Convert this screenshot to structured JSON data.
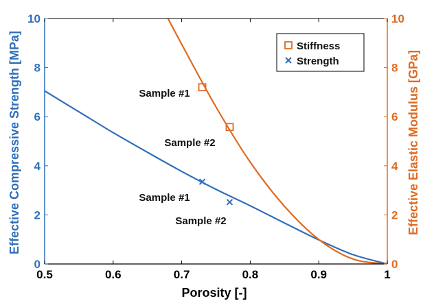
{
  "chart_data": {
    "type": "line",
    "title": "",
    "xlabel": "Porosity [-]",
    "ylabel_left": "Effective Compressive Strength [MPa]",
    "ylabel_right": "Effective Elastic Modulus [GPa]",
    "xlim": [
      0.5,
      1
    ],
    "ylim_left": [
      0,
      10
    ],
    "ylim_right": [
      0,
      10
    ],
    "x_ticks": [
      "0.5",
      "0.6",
      "0.7",
      "0.8",
      "0.9",
      "1"
    ],
    "y_ticks_left": [
      "0",
      "2",
      "4",
      "6",
      "8",
      "10"
    ],
    "y_ticks_right": [
      "0",
      "2",
      "4",
      "6",
      "8",
      "10"
    ],
    "grid": false,
    "legend_position": "top-right",
    "colors": {
      "strength": "#2f6fba",
      "stiffness": "#e06a1f",
      "axis": "#000000"
    },
    "series": [
      {
        "name": "Strength",
        "axis": "left",
        "kind": "line",
        "x": [
          0.5,
          0.55,
          0.6,
          0.65,
          0.7,
          0.75,
          0.8,
          0.85,
          0.9,
          0.95,
          1.0
        ],
        "y": [
          7.05,
          6.2,
          5.35,
          4.55,
          3.77,
          3.04,
          2.37,
          1.67,
          0.98,
          0.38,
          0.0
        ]
      },
      {
        "name": "Stiffness",
        "axis": "right",
        "kind": "line",
        "x": [
          0.68,
          0.7,
          0.75,
          0.8,
          0.85,
          0.9,
          0.95,
          1.0
        ],
        "y": [
          10.0,
          8.95,
          6.4,
          4.15,
          2.35,
          1.0,
          0.2,
          0.0
        ]
      },
      {
        "name": "Stiffness",
        "legend": true,
        "axis": "right",
        "kind": "scatter",
        "marker": "square",
        "points": [
          {
            "x": 0.73,
            "y": 7.2,
            "label": "Sample #1"
          },
          {
            "x": 0.77,
            "y": 5.58,
            "label": "Sample #2"
          }
        ]
      },
      {
        "name": "Strength",
        "legend": true,
        "axis": "left",
        "kind": "scatter",
        "marker": "x",
        "points": [
          {
            "x": 0.73,
            "y": 3.35,
            "label": "Sample #1"
          },
          {
            "x": 0.77,
            "y": 2.52,
            "label": "Sample #2"
          }
        ]
      }
    ],
    "legend": [
      {
        "label": "Stiffness",
        "marker": "square"
      },
      {
        "label": "Strength",
        "marker": "x"
      }
    ],
    "annotations": [
      "Sample #1",
      "Sample #2",
      "Sample #1",
      "Sample #2"
    ]
  }
}
